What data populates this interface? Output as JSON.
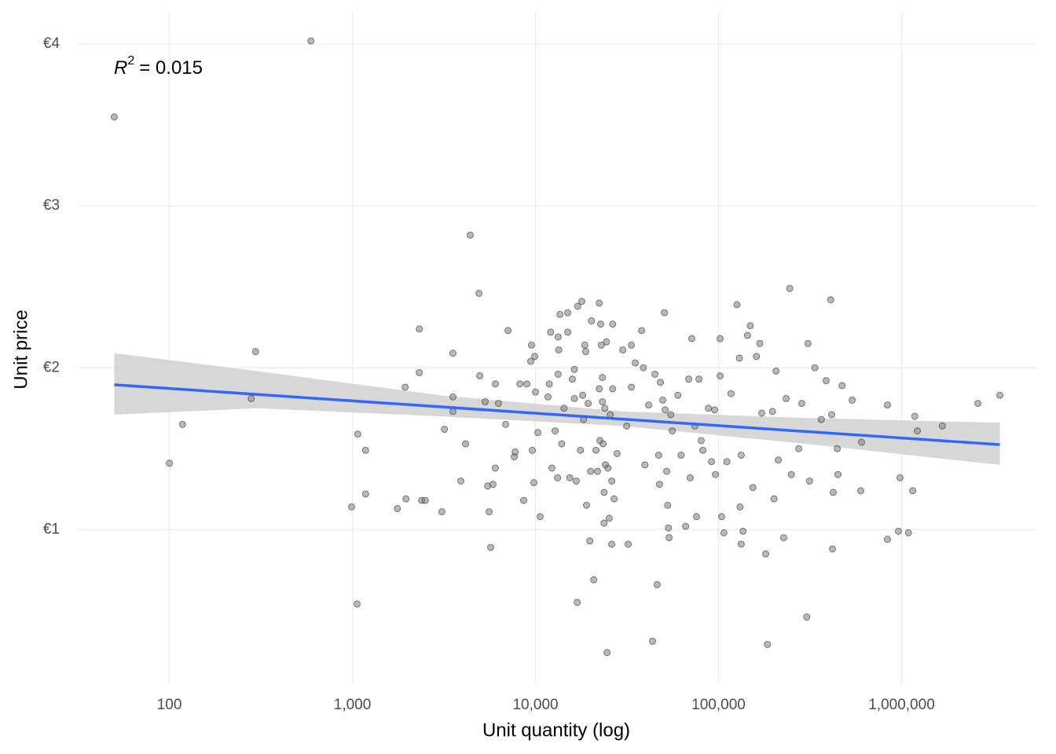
{
  "chart_data": {
    "type": "scatter",
    "x_label": "Unit quantity (log)",
    "y_label": "Unit price",
    "annotation": {
      "symbol": "R",
      "exponent": "2",
      "text": "= 0.015"
    },
    "xscale": "log",
    "grid": true,
    "xlim": [
      31.6,
      5500000
    ],
    "xticks": [
      100,
      {
        "value": 1000,
        "label": "1,000"
      },
      {
        "value": 10000,
        "label": "10,000"
      },
      {
        "value": 100000,
        "label": "100,000"
      },
      {
        "value": 1000000,
        "label": "1,000,000"
      }
    ],
    "ylim": [
      0.05,
      4.2
    ],
    "yticks": [
      {
        "value": 1,
        "label": "€1"
      },
      {
        "value": 2,
        "label": "€2"
      },
      {
        "value": 3,
        "label": "€3"
      },
      {
        "value": 4,
        "label": "€4"
      }
    ],
    "points": {
      "color": "#7f7f7f",
      "x": [
        50,
        593,
        100,
        118,
        280,
        296,
        990,
        1060,
        1070,
        1180,
        1180,
        1760,
        1940,
        1960,
        2320,
        2320,
        2390,
        2500,
        3080,
        3180,
        3540,
        3540,
        3540,
        3910,
        4150,
        4400,
        4910,
        4960,
        5310,
        5480,
        5580,
        5690,
        5860,
        6040,
        6040,
        6280,
        6870,
        7080,
        7660,
        7740,
        8220,
        8620,
        8970,
        9420,
        9510,
        9610,
        9800,
        9900,
        10000,
        10300,
        10600,
        11700,
        11900,
        12100,
        12300,
        12800,
        13200,
        13300,
        13300,
        13400,
        13600,
        13900,
        14300,
        15000,
        15000,
        15400,
        15900,
        16300,
        16300,
        16700,
        16900,
        17000,
        17600,
        17900,
        18100,
        18300,
        18600,
        18800,
        19000,
        19400,
        19800,
        20000,
        20200,
        20800,
        21400,
        21800,
        22300,
        22300,
        22500,
        22700,
        22900,
        23200,
        23200,
        23400,
        23700,
        23700,
        23900,
        24100,
        24400,
        24600,
        24900,
        25300,
        25600,
        26100,
        26100,
        26400,
        26400,
        26900,
        27900,
        30000,
        31500,
        32100,
        33400,
        33400,
        35100,
        38000,
        38800,
        39600,
        41500,
        43600,
        44900,
        46200,
        47100,
        47600,
        48100,
        49600,
        50600,
        51100,
        52100,
        52700,
        53200,
        53700,
        54800,
        55900,
        60000,
        62400,
        66100,
        68700,
        70000,
        71400,
        74300,
        75800,
        78100,
        80400,
        82100,
        88000,
        91500,
        95200,
        96200,
        102000,
        102000,
        104000,
        107000,
        111000,
        117000,
        126000,
        130000,
        131000,
        133000,
        133000,
        136000,
        144000,
        149000,
        154000,
        161000,
        168000,
        172000,
        181000,
        185000,
        197000,
        201000,
        206000,
        212000,
        227000,
        234000,
        245000,
        250000,
        274000,
        285000,
        303000,
        308000,
        314000,
        336000,
        364000,
        387000,
        410000,
        415000,
        419000,
        423000,
        445000,
        449000,
        473000,
        537000,
        598000,
        604000,
        837000,
        837000,
        961000,
        980000,
        1090000,
        1150000,
        1180000,
        1220000,
        1670000,
        2610000,
        3440000
      ],
      "y": [
        3.55,
        4.02,
        1.41,
        1.65,
        1.81,
        2.1,
        1.14,
        0.54,
        1.59,
        1.49,
        1.22,
        1.13,
        1.88,
        1.19,
        2.24,
        1.97,
        1.18,
        1.18,
        1.11,
        1.62,
        2.09,
        1.82,
        1.73,
        1.3,
        1.53,
        2.82,
        2.46,
        1.95,
        1.79,
        1.27,
        1.11,
        0.89,
        1.28,
        1.38,
        1.9,
        1.78,
        1.65,
        2.23,
        1.45,
        1.48,
        1.9,
        1.18,
        1.9,
        2.04,
        2.14,
        1.49,
        1.29,
        2.07,
        1.85,
        1.6,
        1.08,
        1.82,
        1.9,
        2.22,
        1.38,
        1.61,
        1.32,
        1.96,
        2.19,
        2.11,
        2.33,
        1.53,
        1.75,
        2.22,
        2.34,
        1.32,
        1.93,
        1.81,
        1.99,
        1.3,
        0.55,
        2.38,
        1.49,
        2.41,
        1.83,
        1.68,
        2.14,
        2.1,
        1.15,
        1.78,
        0.93,
        1.36,
        2.29,
        0.69,
        1.49,
        1.36,
        2.4,
        1.87,
        1.55,
        2.27,
        2.14,
        1.94,
        1.79,
        1.53,
        1.23,
        1.04,
        1.75,
        1.4,
        2.16,
        0.24,
        1.38,
        1.07,
        1.71,
        0.91,
        1.3,
        2.27,
        1.87,
        1.19,
        1.47,
        2.11,
        1.64,
        0.91,
        1.88,
        2.14,
        2.03,
        2.23,
        2.0,
        1.4,
        1.77,
        0.31,
        1.96,
        0.66,
        1.46,
        1.28,
        1.91,
        1.8,
        2.34,
        1.74,
        1.36,
        1.15,
        1.01,
        0.95,
        1.71,
        1.61,
        1.83,
        1.46,
        1.02,
        1.93,
        1.32,
        2.18,
        1.64,
        1.08,
        1.93,
        1.55,
        1.49,
        1.75,
        1.42,
        1.74,
        1.34,
        1.95,
        2.18,
        1.08,
        0.98,
        1.42,
        1.84,
        2.39,
        2.06,
        1.14,
        1.46,
        0.91,
        0.99,
        2.2,
        2.26,
        1.26,
        2.07,
        2.15,
        1.72,
        0.85,
        0.29,
        1.73,
        1.19,
        1.98,
        1.43,
        0.95,
        1.81,
        2.49,
        1.34,
        1.5,
        1.78,
        0.46,
        2.15,
        1.3,
        2.0,
        1.68,
        1.92,
        2.42,
        1.71,
        0.88,
        1.23,
        1.5,
        1.34,
        1.89,
        1.8,
        1.24,
        1.54,
        0.94,
        1.77,
        0.99,
        1.32,
        0.98,
        1.24,
        1.7,
        1.61,
        1.64,
        1.78,
        1.83
      ]
    },
    "band": {
      "color": "#d3d3d3",
      "x": [
        50,
        300,
        3000,
        30000,
        300000,
        3440000
      ],
      "lower": [
        1.71,
        1.75,
        1.7,
        1.64,
        1.53,
        1.4
      ],
      "upper": [
        2.09,
        1.98,
        1.83,
        1.73,
        1.69,
        1.66
      ]
    },
    "fit": {
      "color": "#3366ff",
      "x": [
        50,
        3440000
      ],
      "y": [
        1.895,
        1.525
      ]
    }
  }
}
